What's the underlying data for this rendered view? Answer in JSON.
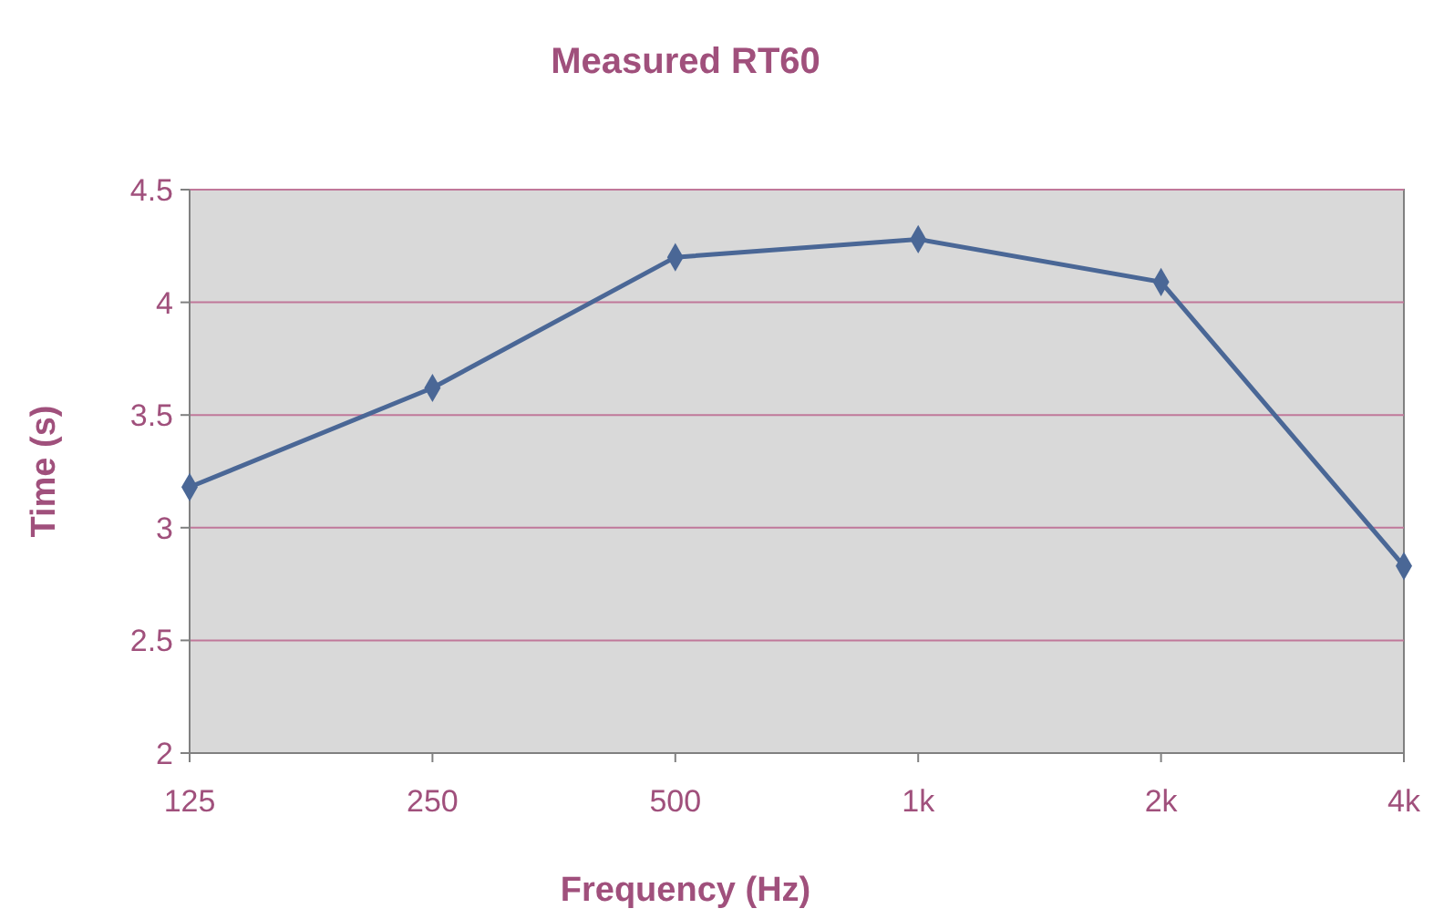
{
  "chart_data": {
    "type": "line",
    "title": "Measured RT60",
    "xlabel": "Frequency (Hz)",
    "ylabel": "Time (s)",
    "categories": [
      "125",
      "250",
      "500",
      "1k",
      "2k",
      "4k"
    ],
    "series": [
      {
        "color": "#4a6796",
        "values": [
          3.18,
          3.62,
          4.2,
          4.28,
          4.09,
          2.83
        ]
      }
    ],
    "ylim": [
      2,
      4.5
    ],
    "yticks": [
      2,
      2.5,
      3,
      3.5,
      4,
      4.5
    ],
    "grid": "y",
    "marker": "diamond"
  }
}
